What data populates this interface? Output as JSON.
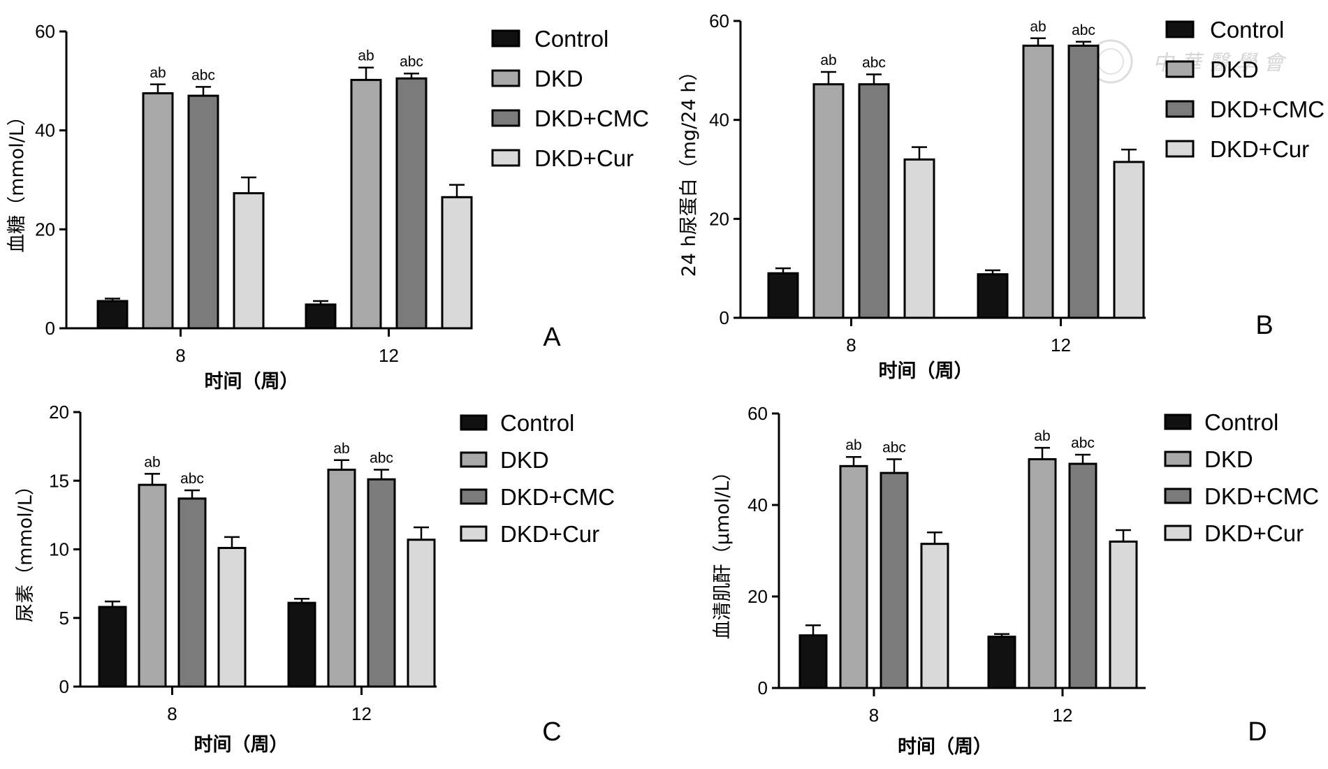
{
  "watermark": {
    "text": "中 華 醫 學 會"
  },
  "legend_labels": [
    "Control",
    "DKD",
    "DKD+CMC",
    "DKD+Cur"
  ],
  "colors": {
    "Control": "#111111",
    "DKD": "#a8a8a8",
    "DKD+CMC": "#7b7b7b",
    "DKD+Cur": "#d9d9d9",
    "stroke": "#000000"
  },
  "chart_data": [
    {
      "panel": "A",
      "type": "bar",
      "xlabel": "时间（周）",
      "ylabel": "血糖（mmol/L）",
      "categories": [
        "8",
        "12"
      ],
      "ylim": [
        0,
        60
      ],
      "yticks": [
        0,
        20,
        40,
        60
      ],
      "series": [
        {
          "name": "Control",
          "values": [
            5.5,
            4.8
          ],
          "errors": [
            0.5,
            0.7
          ],
          "labels": [
            "",
            ""
          ]
        },
        {
          "name": "DKD",
          "values": [
            47.5,
            50.2
          ],
          "errors": [
            1.8,
            2.5
          ],
          "labels": [
            "ab",
            "ab"
          ]
        },
        {
          "name": "DKD+CMC",
          "values": [
            47.0,
            50.5
          ],
          "errors": [
            1.8,
            1.0
          ],
          "labels": [
            "abc",
            "abc"
          ]
        },
        {
          "name": "DKD+Cur",
          "values": [
            27.3,
            26.5
          ],
          "errors": [
            3.2,
            2.5
          ],
          "labels": [
            "",
            ""
          ]
        }
      ]
    },
    {
      "panel": "B",
      "type": "bar",
      "xlabel": "时间（周）",
      "ylabel": "24 h尿蛋白（mg/24 h）",
      "categories": [
        "8",
        "12"
      ],
      "ylim": [
        0,
        60
      ],
      "yticks": [
        0,
        20,
        40,
        60
      ],
      "series": [
        {
          "name": "Control",
          "values": [
            9.0,
            8.8
          ],
          "errors": [
            1.0,
            0.8
          ],
          "labels": [
            "",
            ""
          ]
        },
        {
          "name": "DKD",
          "values": [
            47.2,
            55.0
          ],
          "errors": [
            2.5,
            1.5
          ],
          "labels": [
            "ab",
            "ab"
          ]
        },
        {
          "name": "DKD+CMC",
          "values": [
            47.2,
            55.0
          ],
          "errors": [
            2.0,
            0.8
          ],
          "labels": [
            "abc",
            "abc"
          ]
        },
        {
          "name": "DKD+Cur",
          "values": [
            32.0,
            31.5
          ],
          "errors": [
            2.5,
            2.5
          ],
          "labels": [
            "",
            ""
          ]
        }
      ]
    },
    {
      "panel": "C",
      "type": "bar",
      "xlabel": "时间（周）",
      "ylabel": "尿素（mmol/L）",
      "categories": [
        "8",
        "12"
      ],
      "ylim": [
        0,
        20
      ],
      "yticks": [
        0,
        5,
        10,
        15,
        20
      ],
      "series": [
        {
          "name": "Control",
          "values": [
            5.8,
            6.1
          ],
          "errors": [
            0.4,
            0.3
          ],
          "labels": [
            "",
            ""
          ]
        },
        {
          "name": "DKD",
          "values": [
            14.7,
            15.8
          ],
          "errors": [
            0.8,
            0.7
          ],
          "labels": [
            "ab",
            "ab"
          ]
        },
        {
          "name": "DKD+CMC",
          "values": [
            13.7,
            15.1
          ],
          "errors": [
            0.6,
            0.7
          ],
          "labels": [
            "abc",
            "abc"
          ]
        },
        {
          "name": "DKD+Cur",
          "values": [
            10.1,
            10.7
          ],
          "errors": [
            0.8,
            0.9
          ],
          "labels": [
            "",
            ""
          ]
        }
      ]
    },
    {
      "panel": "D",
      "type": "bar",
      "xlabel": "时间（周）",
      "ylabel": "血清肌酐（μmol/L）",
      "categories": [
        "8",
        "12"
      ],
      "ylim": [
        0,
        60
      ],
      "yticks": [
        0,
        20,
        40,
        60
      ],
      "series": [
        {
          "name": "Control",
          "values": [
            11.5,
            11.2
          ],
          "errors": [
            2.2,
            0.6
          ],
          "labels": [
            "",
            ""
          ]
        },
        {
          "name": "DKD",
          "values": [
            48.5,
            50.0
          ],
          "errors": [
            2.0,
            2.5
          ],
          "labels": [
            "ab",
            "ab"
          ]
        },
        {
          "name": "DKD+CMC",
          "values": [
            47.0,
            49.0
          ],
          "errors": [
            3.0,
            2.0
          ],
          "labels": [
            "abc",
            "abc"
          ]
        },
        {
          "name": "DKD+Cur",
          "values": [
            31.5,
            32.0
          ],
          "errors": [
            2.5,
            2.5
          ],
          "labels": [
            "",
            ""
          ]
        }
      ]
    }
  ]
}
